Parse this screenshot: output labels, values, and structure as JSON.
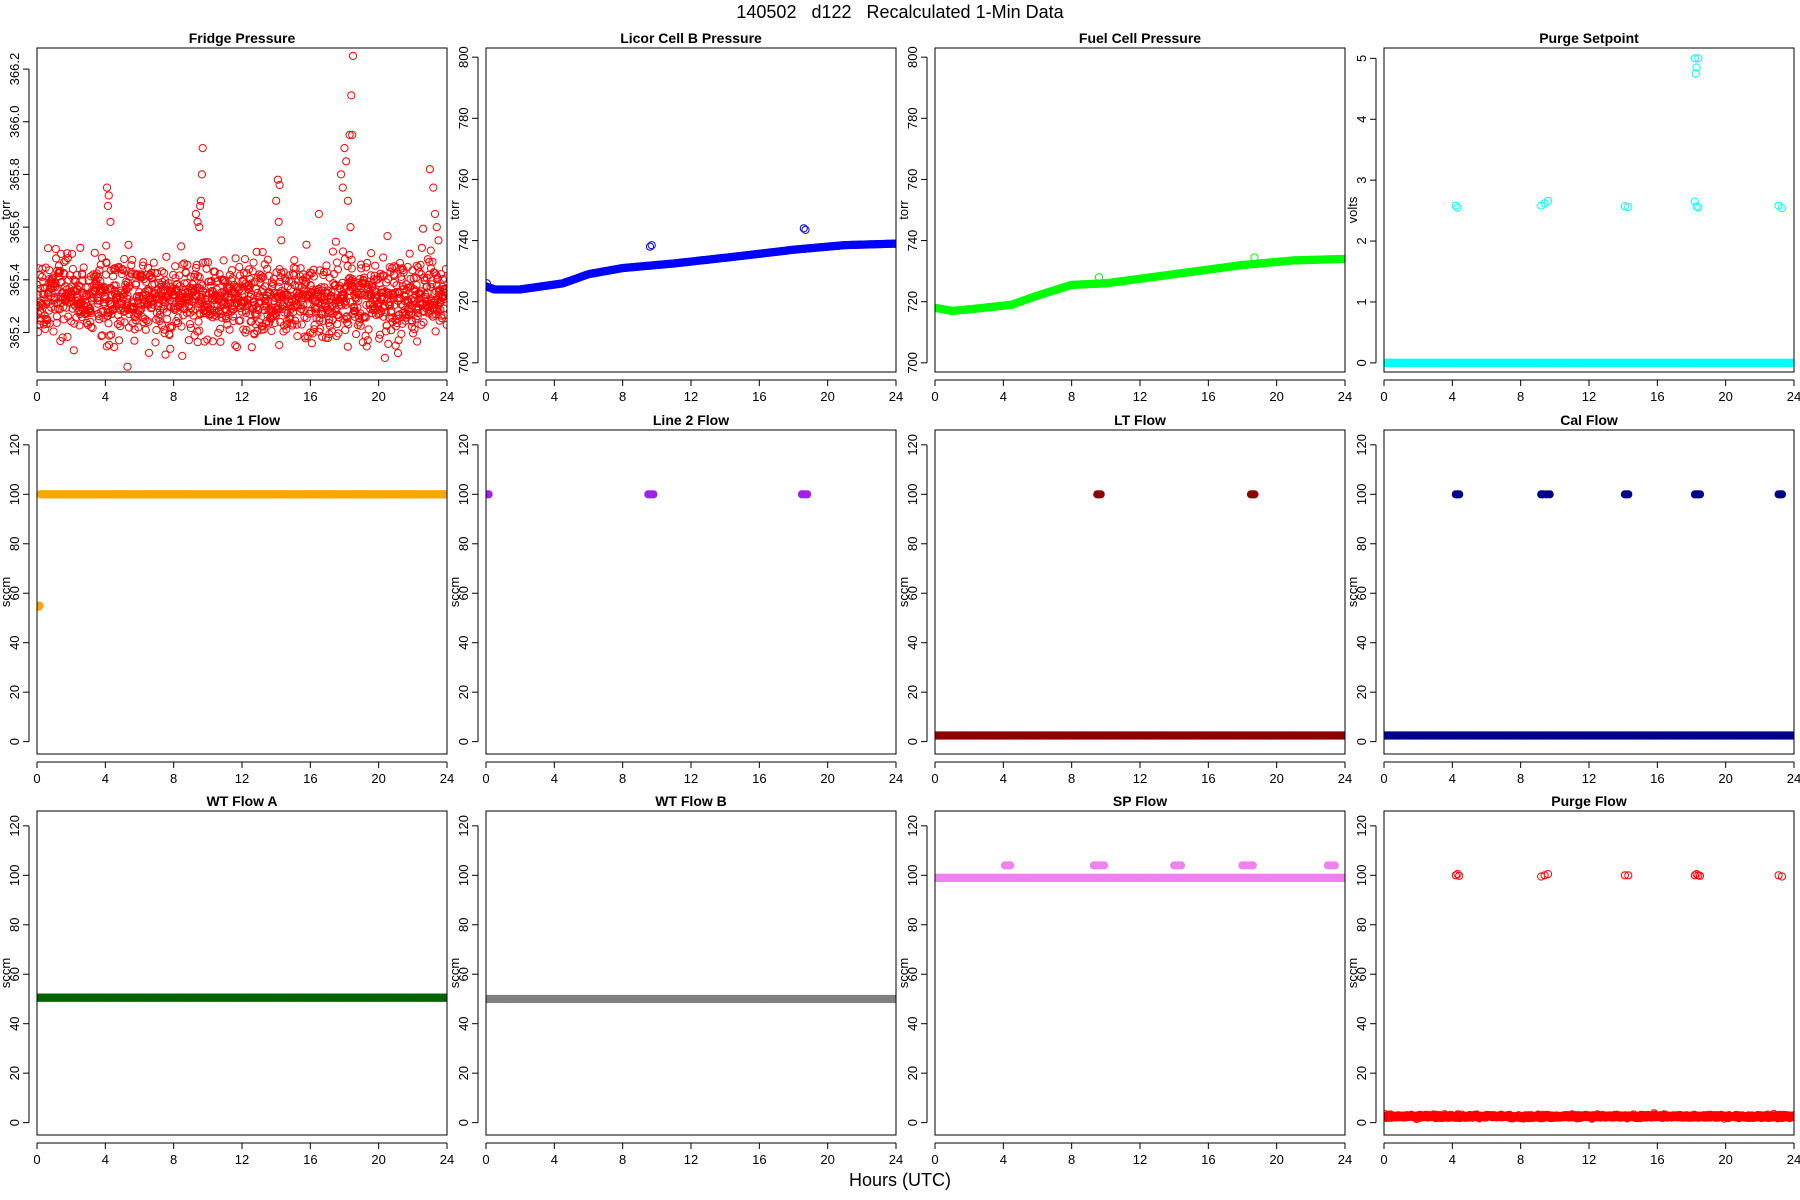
{
  "title": "140502   d122   Recalculated 1-Min Data",
  "xlabel": "Hours (UTC)",
  "chart_data": [
    {
      "type": "scatter",
      "title": "Fridge Pressure",
      "ylabel": "torr",
      "color": "#ff0000",
      "marker": "open",
      "xlim": [
        0,
        24
      ],
      "ylim": [
        365.05,
        366.28
      ],
      "xticks": [
        0,
        4,
        8,
        12,
        16,
        20,
        24
      ],
      "yticks": [
        365.2,
        365.4,
        365.6,
        365.8,
        366.0,
        366.2
      ],
      "ytick_labels": [
        "365.2",
        "365.4",
        "365.6",
        "365.8",
        "366.0",
        "366.2"
      ],
      "series": [
        {
          "kind": "noise",
          "x_range": [
            0,
            24
          ],
          "count": 1440,
          "center": 365.33,
          "spread": 0.13
        }
      ],
      "points": [
        [
          4.1,
          365.75
        ],
        [
          4.2,
          365.72
        ],
        [
          4.15,
          365.68
        ],
        [
          4.3,
          365.62
        ],
        [
          4.05,
          365.53
        ],
        [
          9.3,
          365.65
        ],
        [
          9.4,
          365.62
        ],
        [
          9.5,
          365.6
        ],
        [
          9.6,
          365.7
        ],
        [
          9.7,
          365.9
        ],
        [
          9.65,
          365.8
        ],
        [
          9.55,
          365.68
        ],
        [
          14.0,
          365.7
        ],
        [
          14.1,
          365.78
        ],
        [
          14.2,
          365.76
        ],
        [
          14.15,
          365.62
        ],
        [
          14.3,
          365.55
        ],
        [
          17.8,
          365.8
        ],
        [
          17.9,
          365.75
        ],
        [
          18.0,
          365.9
        ],
        [
          18.1,
          365.85
        ],
        [
          18.2,
          365.7
        ],
        [
          18.3,
          365.95
        ],
        [
          18.4,
          366.1
        ],
        [
          18.5,
          366.25
        ],
        [
          18.45,
          365.95
        ],
        [
          18.35,
          365.6
        ],
        [
          23.0,
          365.82
        ],
        [
          23.2,
          365.75
        ],
        [
          23.4,
          365.6
        ],
        [
          23.5,
          365.55
        ],
        [
          23.3,
          365.65
        ],
        [
          16.5,
          365.65
        ],
        [
          5.3,
          365.07
        ]
      ]
    },
    {
      "type": "scatter",
      "title": "Licor Cell B Pressure",
      "ylabel": "torr",
      "color": "#0000ff",
      "marker": "open",
      "xlim": [
        0,
        24
      ],
      "ylim": [
        697,
        803
      ],
      "xticks": [
        0,
        4,
        8,
        12,
        16,
        20,
        24
      ],
      "yticks": [
        700,
        720,
        740,
        760,
        780,
        800
      ],
      "ytick_labels": [
        "700",
        "720",
        "740",
        "760",
        "780",
        "800"
      ],
      "series": [
        {
          "kind": "curve",
          "knots": [
            [
              0,
              725
            ],
            [
              0.5,
              724
            ],
            [
              2,
              724
            ],
            [
              4.5,
              726
            ],
            [
              6,
              729
            ],
            [
              8,
              731
            ],
            [
              11,
              732.5
            ],
            [
              15,
              735
            ],
            [
              18,
              737
            ],
            [
              21,
              738.5
            ],
            [
              24,
              739
            ]
          ]
        }
      ],
      "points": [
        [
          0.05,
          726
        ],
        [
          9.6,
          738
        ],
        [
          9.7,
          738.5
        ],
        [
          18.6,
          744
        ],
        [
          18.7,
          743.5
        ]
      ]
    },
    {
      "type": "scatter",
      "title": "Fuel Cell Pressure",
      "ylabel": "torr",
      "color": "#00ff00",
      "marker": "open",
      "xlim": [
        0,
        24
      ],
      "ylim": [
        697,
        803
      ],
      "xticks": [
        0,
        4,
        8,
        12,
        16,
        20,
        24
      ],
      "yticks": [
        700,
        720,
        740,
        760,
        780,
        800
      ],
      "ytick_labels": [
        "700",
        "720",
        "740",
        "760",
        "780",
        "800"
      ],
      "series": [
        {
          "kind": "curve",
          "knots": [
            [
              0,
              718
            ],
            [
              1,
              717
            ],
            [
              2,
              717.5
            ],
            [
              4.5,
              719
            ],
            [
              6,
              722
            ],
            [
              8,
              725.5
            ],
            [
              10,
              726
            ],
            [
              14,
              729
            ],
            [
              18,
              732
            ],
            [
              21,
              733.5
            ],
            [
              24,
              734
            ]
          ]
        }
      ],
      "points": [
        [
          9.6,
          728
        ],
        [
          18.7,
          734.5
        ]
      ]
    },
    {
      "type": "scatter",
      "title": "Purge Setpoint",
      "ylabel": "volts",
      "color": "#00ffff",
      "marker": "open",
      "xlim": [
        0,
        24
      ],
      "ylim": [
        -0.15,
        5.17
      ],
      "xticks": [
        0,
        4,
        8,
        12,
        16,
        20,
        24
      ],
      "yticks": [
        0,
        1,
        2,
        3,
        4,
        5
      ],
      "ytick_labels": [
        "0",
        "1",
        "2",
        "3",
        "4",
        "5"
      ],
      "series": [
        {
          "kind": "flat",
          "x_range": [
            0,
            24
          ],
          "y": 0
        }
      ],
      "points": [
        [
          4.2,
          2.58
        ],
        [
          4.3,
          2.55
        ],
        [
          9.2,
          2.58
        ],
        [
          9.4,
          2.62
        ],
        [
          9.6,
          2.66
        ],
        [
          14.1,
          2.57
        ],
        [
          14.3,
          2.56
        ],
        [
          18.2,
          2.65
        ],
        [
          18.3,
          2.57
        ],
        [
          18.4,
          2.55
        ],
        [
          18.2,
          5.0
        ],
        [
          18.4,
          5.0
        ],
        [
          18.3,
          4.85
        ],
        [
          18.25,
          4.75
        ],
        [
          23.1,
          2.58
        ],
        [
          23.3,
          2.54
        ]
      ]
    },
    {
      "type": "scatter",
      "title": "Line 1 Flow",
      "ylabel": "sccm",
      "color": "#ffa500",
      "marker": "filled",
      "xlim": [
        0,
        24
      ],
      "ylim": [
        -5,
        126
      ],
      "xticks": [
        0,
        4,
        8,
        12,
        16,
        20,
        24
      ],
      "yticks": [
        0,
        20,
        40,
        60,
        80,
        100,
        120
      ],
      "ytick_labels": [
        "0",
        "20",
        "40",
        "60",
        "80",
        "100",
        "120"
      ],
      "series": [
        {
          "kind": "flat",
          "x_range": [
            0.2,
            24
          ],
          "y": 100
        }
      ],
      "points": [
        [
          0.05,
          55
        ],
        [
          0.15,
          55
        ],
        [
          0.1,
          54.5
        ]
      ]
    },
    {
      "type": "scatter",
      "title": "Line 2 Flow",
      "ylabel": "sccm",
      "color": "#a020f0",
      "marker": "filled",
      "xlim": [
        0,
        24
      ],
      "ylim": [
        -5,
        126
      ],
      "xticks": [
        0,
        4,
        8,
        12,
        16,
        20,
        24
      ],
      "yticks": [
        0,
        20,
        40,
        60,
        80,
        100,
        120
      ],
      "ytick_labels": [
        "0",
        "20",
        "40",
        "60",
        "80",
        "100",
        "120"
      ],
      "series": [],
      "points": [
        [
          0.1,
          100
        ],
        [
          0.15,
          100
        ],
        [
          9.5,
          100
        ],
        [
          9.6,
          100
        ],
        [
          9.7,
          100
        ],
        [
          9.8,
          100
        ],
        [
          18.5,
          100
        ],
        [
          18.6,
          100
        ],
        [
          18.7,
          100
        ],
        [
          18.8,
          100
        ]
      ]
    },
    {
      "type": "scatter",
      "title": "LT Flow",
      "ylabel": "sccm",
      "color": "#8b0000",
      "marker": "filled",
      "xlim": [
        0,
        24
      ],
      "ylim": [
        -5,
        126
      ],
      "xticks": [
        0,
        4,
        8,
        12,
        16,
        20,
        24
      ],
      "yticks": [
        0,
        20,
        40,
        60,
        80,
        100,
        120
      ],
      "ytick_labels": [
        "0",
        "20",
        "40",
        "60",
        "80",
        "100",
        "120"
      ],
      "series": [
        {
          "kind": "flat",
          "x_range": [
            0,
            24
          ],
          "y": 2.5
        }
      ],
      "points": [
        [
          9.5,
          100
        ],
        [
          9.6,
          100
        ],
        [
          9.7,
          100
        ],
        [
          18.5,
          100
        ],
        [
          18.6,
          100
        ],
        [
          18.7,
          100
        ]
      ]
    },
    {
      "type": "scatter",
      "title": "Cal Flow",
      "ylabel": "sccm",
      "color": "#00008b",
      "marker": "filled",
      "xlim": [
        0,
        24
      ],
      "ylim": [
        -5,
        126
      ],
      "xticks": [
        0,
        4,
        8,
        12,
        16,
        20,
        24
      ],
      "yticks": [
        0,
        20,
        40,
        60,
        80,
        100,
        120
      ],
      "ytick_labels": [
        "0",
        "20",
        "40",
        "60",
        "80",
        "100",
        "120"
      ],
      "series": [
        {
          "kind": "flat",
          "x_range": [
            0,
            24
          ],
          "y": 2.5
        }
      ],
      "points": [
        [
          4.2,
          100
        ],
        [
          4.3,
          100
        ],
        [
          4.4,
          100
        ],
        [
          9.2,
          100
        ],
        [
          9.3,
          100
        ],
        [
          9.5,
          100
        ],
        [
          9.7,
          100
        ],
        [
          14.1,
          100
        ],
        [
          14.2,
          100
        ],
        [
          14.3,
          100
        ],
        [
          18.2,
          100
        ],
        [
          18.3,
          100
        ],
        [
          18.4,
          100
        ],
        [
          18.5,
          100
        ],
        [
          23.1,
          100
        ],
        [
          23.2,
          100
        ],
        [
          23.3,
          100
        ]
      ]
    },
    {
      "type": "scatter",
      "title": "WT Flow A",
      "ylabel": "sccm",
      "color": "#006400",
      "marker": "filled",
      "xlim": [
        0,
        24
      ],
      "ylim": [
        -5,
        126
      ],
      "xticks": [
        0,
        4,
        8,
        12,
        16,
        20,
        24
      ],
      "yticks": [
        0,
        20,
        40,
        60,
        80,
        100,
        120
      ],
      "ytick_labels": [
        "0",
        "20",
        "40",
        "60",
        "80",
        "100",
        "120"
      ],
      "series": [
        {
          "kind": "flat",
          "x_range": [
            0,
            24
          ],
          "y": 50.5
        }
      ],
      "points": []
    },
    {
      "type": "scatter",
      "title": "WT Flow B",
      "ylabel": "sccm",
      "color": "#808080",
      "marker": "filled",
      "xlim": [
        0,
        24
      ],
      "ylim": [
        -5,
        126
      ],
      "xticks": [
        0,
        4,
        8,
        12,
        16,
        20,
        24
      ],
      "yticks": [
        0,
        20,
        40,
        60,
        80,
        100,
        120
      ],
      "ytick_labels": [
        "0",
        "20",
        "40",
        "60",
        "80",
        "100",
        "120"
      ],
      "series": [
        {
          "kind": "flat",
          "x_range": [
            0,
            24
          ],
          "y": 50
        }
      ],
      "points": []
    },
    {
      "type": "scatter",
      "title": "SP Flow",
      "ylabel": "sccm",
      "color": "#ee82ee",
      "marker": "filled",
      "xlim": [
        0,
        24
      ],
      "ylim": [
        -5,
        126
      ],
      "xticks": [
        0,
        4,
        8,
        12,
        16,
        20,
        24
      ],
      "yticks": [
        0,
        20,
        40,
        60,
        80,
        100,
        120
      ],
      "ytick_labels": [
        "0",
        "20",
        "40",
        "60",
        "80",
        "100",
        "120"
      ],
      "series": [
        {
          "kind": "flat",
          "x_range": [
            0,
            24
          ],
          "y": 99
        }
      ],
      "points": [
        [
          4.1,
          104
        ],
        [
          4.3,
          104
        ],
        [
          4.4,
          104
        ],
        [
          9.3,
          104
        ],
        [
          9.5,
          104
        ],
        [
          9.7,
          104
        ],
        [
          9.9,
          104
        ],
        [
          14.0,
          104
        ],
        [
          14.2,
          104
        ],
        [
          14.4,
          104
        ],
        [
          18.0,
          104
        ],
        [
          18.2,
          104
        ],
        [
          18.4,
          104
        ],
        [
          18.6,
          104
        ],
        [
          23.0,
          104
        ],
        [
          23.2,
          104
        ],
        [
          23.4,
          104
        ]
      ]
    },
    {
      "type": "scatter",
      "title": "Purge Flow",
      "ylabel": "sccm",
      "color": "#ff0000",
      "marker": "open",
      "xlim": [
        0,
        24
      ],
      "ylim": [
        -5,
        126
      ],
      "xticks": [
        0,
        4,
        8,
        12,
        16,
        20,
        24
      ],
      "yticks": [
        0,
        20,
        40,
        60,
        80,
        100,
        120
      ],
      "ytick_labels": [
        "0",
        "20",
        "40",
        "60",
        "80",
        "100",
        "120"
      ],
      "series": [
        {
          "kind": "noise",
          "x_range": [
            0,
            24
          ],
          "count": 1200,
          "center": 2.5,
          "spread": 0.6
        }
      ],
      "points": [
        [
          4.2,
          100
        ],
        [
          4.3,
          100.5
        ],
        [
          4.4,
          99.8
        ],
        [
          9.2,
          99.5
        ],
        [
          9.4,
          100
        ],
        [
          9.6,
          100.5
        ],
        [
          14.1,
          100
        ],
        [
          14.3,
          100
        ],
        [
          18.2,
          100
        ],
        [
          18.3,
          100.5
        ],
        [
          18.4,
          100
        ],
        [
          18.5,
          99.8
        ],
        [
          23.1,
          100
        ],
        [
          23.3,
          99.5
        ]
      ]
    }
  ]
}
